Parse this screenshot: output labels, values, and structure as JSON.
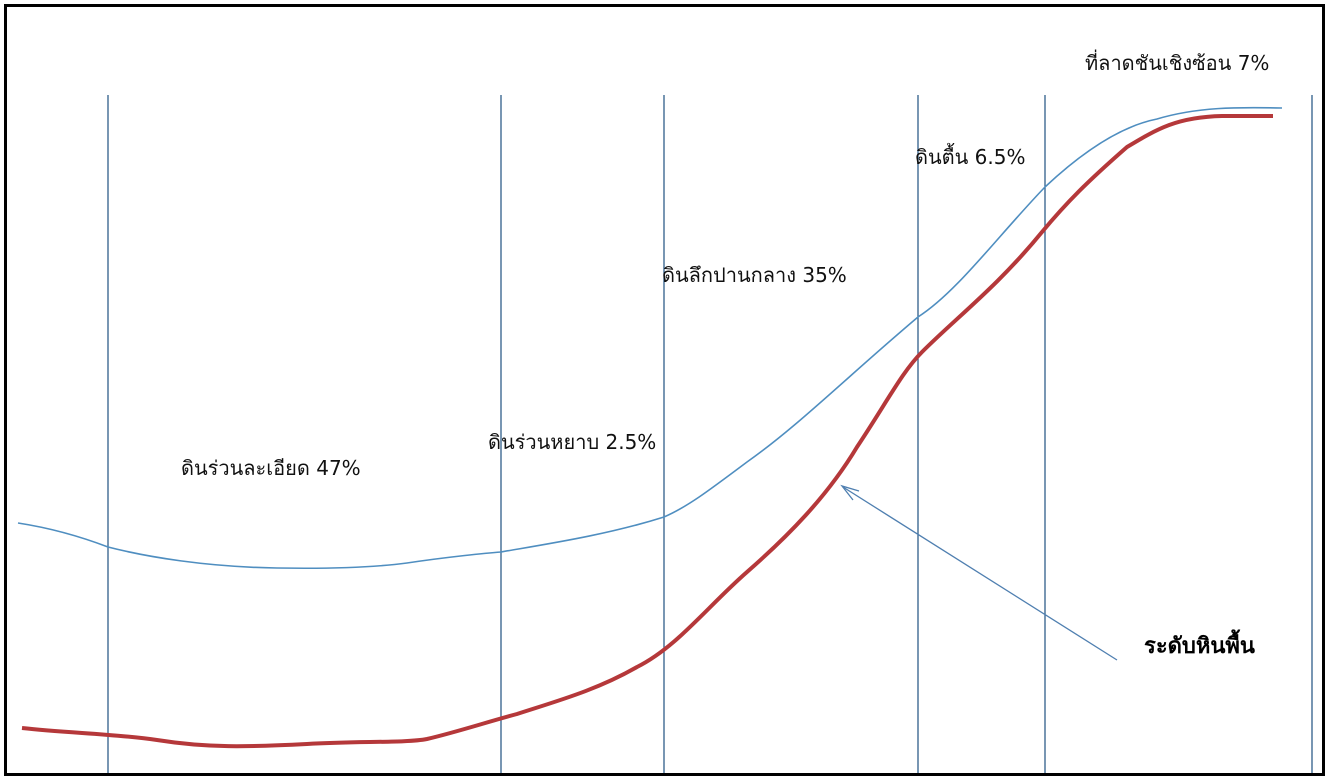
{
  "diagram": {
    "zone_labels": [
      "ดินร่วนละเอียด 47%",
      "ดินร่วนหยาบ 2.5%",
      "ดินลึกปานกลาง 35%",
      "ดินตื้น 6.5%",
      "ที่ลาดชันเชิงซ้อน 7%"
    ],
    "pointer_label": "ระดับหินพื้น",
    "colors": {
      "border": "#000000",
      "zone_line": "#2f5f8a",
      "surface_line": "#4f8ec0",
      "bedrock_line": "#b5383a",
      "arrow": "#4f7fb0"
    }
  }
}
